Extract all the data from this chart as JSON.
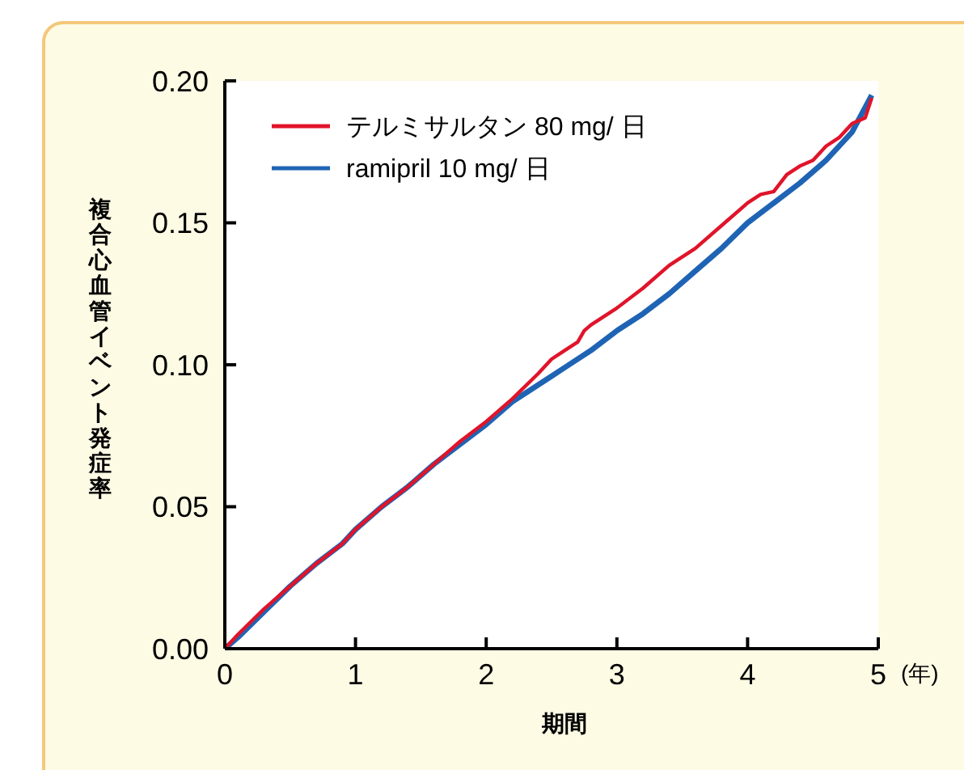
{
  "chart_data": {
    "type": "line",
    "xlabel": "期間",
    "ylabel": "複合心血管イベント発症率",
    "annotations": [
      "(年)"
    ],
    "xlim": [
      0,
      5
    ],
    "ylim": [
      0,
      0.2
    ],
    "xticks": [
      0,
      1,
      2,
      3,
      4,
      5
    ],
    "yticks": [
      {
        "value": 0,
        "label": "0.00"
      },
      {
        "value": 0.05,
        "label": "0.05"
      },
      {
        "value": 0.1,
        "label": "0.10"
      },
      {
        "value": 0.15,
        "label": "0.15"
      },
      {
        "value": 0.2,
        "label": "0.20"
      }
    ],
    "legend": "top left",
    "grid": false,
    "marker": "none",
    "line_style": "solid",
    "series": [
      {
        "name": "テルミサルタン 80 mg/ 日",
        "color": "#e0142a",
        "x": [
          0,
          0.1,
          0.3,
          0.5,
          0.7,
          0.9,
          1,
          1.2,
          1.4,
          1.6,
          1.8,
          2,
          2.2,
          2.4,
          2.5,
          2.6,
          2.7,
          2.75,
          2.8,
          3,
          3.2,
          3.4,
          3.5,
          3.6,
          3.8,
          4,
          4.1,
          4.2,
          4.3,
          4.4,
          4.5,
          4.6,
          4.7,
          4.8,
          4.9,
          4.95
        ],
        "values": [
          0,
          0.005,
          0.014,
          0.022,
          0.03,
          0.037,
          0.042,
          0.05,
          0.057,
          0.065,
          0.073,
          0.08,
          0.088,
          0.097,
          0.102,
          0.105,
          0.108,
          0.112,
          0.114,
          0.12,
          0.127,
          0.135,
          0.138,
          0.141,
          0.149,
          0.157,
          0.16,
          0.161,
          0.167,
          0.17,
          0.172,
          0.177,
          0.18,
          0.185,
          0.187,
          0.194
        ]
      },
      {
        "name": "ramipril  10 mg/ 日",
        "color": "#1f64b4",
        "x": [
          0,
          0.1,
          0.3,
          0.5,
          0.7,
          0.9,
          1,
          1.2,
          1.4,
          1.6,
          1.8,
          2,
          2.2,
          2.4,
          2.5,
          2.6,
          2.8,
          3,
          3.2,
          3.4,
          3.6,
          3.8,
          4,
          4.2,
          4.4,
          4.6,
          4.8,
          4.95
        ],
        "values": [
          0,
          0.004,
          0.013,
          0.022,
          0.03,
          0.037,
          0.042,
          0.05,
          0.057,
          0.065,
          0.072,
          0.079,
          0.087,
          0.093,
          0.096,
          0.099,
          0.105,
          0.112,
          0.118,
          0.125,
          0.133,
          0.141,
          0.15,
          0.157,
          0.164,
          0.172,
          0.182,
          0.195
        ]
      }
    ]
  }
}
